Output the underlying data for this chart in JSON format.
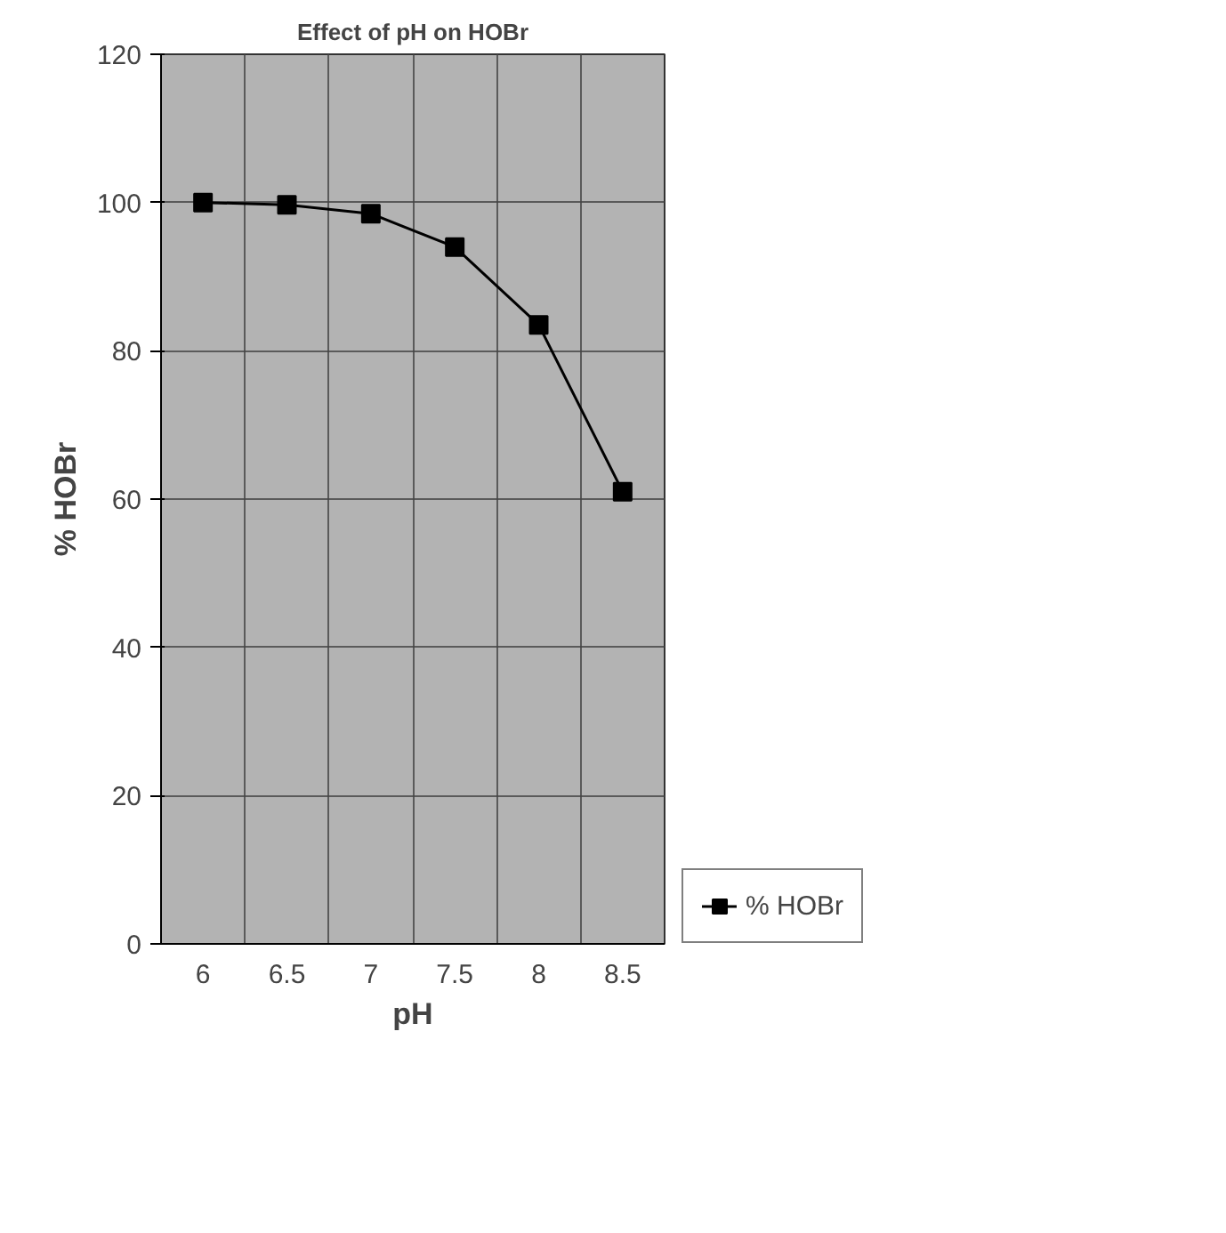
{
  "chart_data": {
    "type": "line",
    "title": "Effect of pH on HOBr",
    "xlabel": "pH",
    "ylabel": "% HOBr",
    "categories": [
      "6",
      "6.5",
      "7",
      "7.5",
      "8",
      "8.5"
    ],
    "series": [
      {
        "name": "% HOBr",
        "color": "#000000",
        "values": [
          100,
          99.7,
          98.5,
          94,
          83.5,
          61
        ]
      }
    ],
    "ylim": [
      0,
      120
    ],
    "yticks": [
      0,
      20,
      40,
      60,
      80,
      100,
      120
    ],
    "grid": true,
    "legend": "bottom right",
    "marker": "square",
    "line_style": "solid"
  }
}
